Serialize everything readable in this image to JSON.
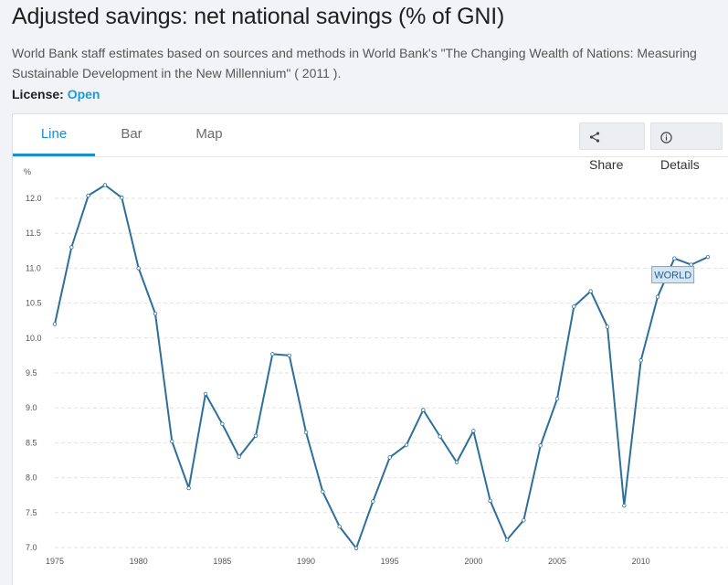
{
  "page": {
    "title": "Adjusted savings: net national savings (% of GNI)",
    "description": "World Bank staff estimates based on sources and methods in World Bank's \"The Changing Wealth of Nations: Measuring Sustainable Development in the New Millennium\" ( 2011 ).",
    "license_label": "License:",
    "license_value": "Open"
  },
  "tabs": [
    {
      "label": "Line"
    },
    {
      "label": "Bar"
    },
    {
      "label": "Map"
    }
  ],
  "actions": {
    "share_label": "Share",
    "details_label": "Details"
  },
  "colors": {
    "line": "#2e6f9a",
    "accent": "#1a8fd0",
    "grid": "#e2e2e2"
  },
  "chart_data": {
    "type": "line",
    "ylabel": "%",
    "ylim": [
      7.0,
      12.0
    ],
    "yticks": [
      7.0,
      7.5,
      8.0,
      8.5,
      9.0,
      9.5,
      10.0,
      10.5,
      11.0,
      11.5,
      12.0
    ],
    "ytick_labels": [
      "7.0",
      "7.5",
      "8.0",
      "8.5",
      "9.0",
      "9.5",
      "10.0",
      "10.5",
      "11.0",
      "11.5",
      "12.0"
    ],
    "xticks": [
      1975,
      1980,
      1985,
      1990,
      1995,
      2000,
      2005,
      2010
    ],
    "xlim": [
      1975,
      2014
    ],
    "series": [
      {
        "name": "WORLD",
        "x": [
          1975,
          1976,
          1977,
          1978,
          1979,
          1980,
          1981,
          1982,
          1983,
          1984,
          1985,
          1986,
          1987,
          1988,
          1989,
          1990,
          1991,
          1992,
          1993,
          1994,
          1995,
          1996,
          1997,
          1998,
          1999,
          2000,
          2001,
          2002,
          2003,
          2004,
          2005,
          2006,
          2007,
          2008,
          2009,
          2010,
          2011,
          2012,
          2013,
          2014
        ],
        "values": [
          10.2,
          11.3,
          12.04,
          12.19,
          12.01,
          11.0,
          10.35,
          8.52,
          7.85,
          9.2,
          8.77,
          8.3,
          8.6,
          9.77,
          9.75,
          8.65,
          7.8,
          7.3,
          6.99,
          7.66,
          8.29,
          8.47,
          8.97,
          8.59,
          8.22,
          8.67,
          7.67,
          7.11,
          7.39,
          8.46,
          9.13,
          10.45,
          10.67,
          10.16,
          7.6,
          9.68,
          10.59,
          11.14,
          11.05,
          11.16
        ]
      }
    ]
  }
}
